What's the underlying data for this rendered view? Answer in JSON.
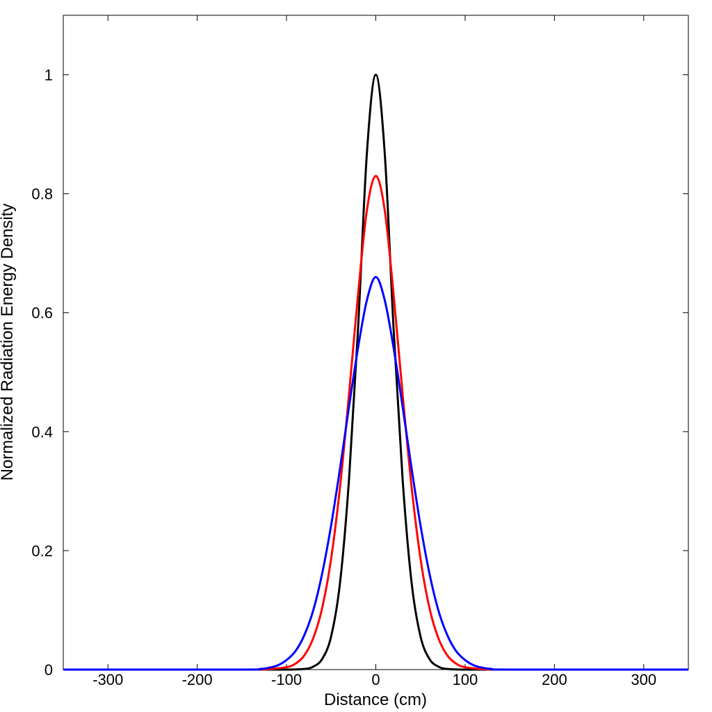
{
  "chart_data": {
    "type": "line",
    "title": "",
    "xlabel": "Distance (cm)",
    "ylabel": "Normalized Radiation Energy Density",
    "xlim": [
      -350,
      350
    ],
    "ylim": [
      0,
      1.1
    ],
    "xticks": [
      -300,
      -200,
      -100,
      0,
      100,
      200,
      300
    ],
    "xtick_labels": [
      "-300",
      "-200",
      "-100",
      "0",
      "100",
      "200",
      "300"
    ],
    "yticks": [
      0,
      0.2,
      0.4,
      0.6,
      0.8,
      1
    ],
    "ytick_labels": [
      "0",
      "0.2",
      "0.4",
      "0.6",
      "0.8",
      "1"
    ],
    "grid": false,
    "legend": "none",
    "series": [
      {
        "color": "#000000",
        "x": [
          -350,
          -150,
          -100,
          -80,
          -70,
          -60,
          -50,
          -40,
          -30,
          -20,
          -10,
          0,
          10,
          20,
          30,
          40,
          50,
          60,
          70,
          80,
          100,
          150,
          350
        ],
        "values": [
          0,
          0,
          0,
          0.001,
          0.005,
          0.018,
          0.056,
          0.147,
          0.32,
          0.57,
          0.868,
          1.0,
          0.868,
          0.57,
          0.32,
          0.147,
          0.056,
          0.018,
          0.005,
          0.001,
          0,
          0,
          0
        ]
      },
      {
        "color": "#ff0000",
        "x": [
          -350,
          -150,
          -120,
          -100,
          -90,
          -80,
          -70,
          -60,
          -50,
          -40,
          -30,
          -20,
          -10,
          0,
          10,
          20,
          30,
          40,
          50,
          60,
          70,
          80,
          90,
          100,
          120,
          150,
          350
        ],
        "values": [
          0,
          0,
          0.001,
          0.004,
          0.01,
          0.024,
          0.053,
          0.104,
          0.187,
          0.308,
          0.463,
          0.629,
          0.772,
          0.83,
          0.772,
          0.629,
          0.463,
          0.308,
          0.187,
          0.104,
          0.053,
          0.024,
          0.01,
          0.004,
          0.001,
          0,
          0
        ]
      },
      {
        "color": "#0000ff",
        "x": [
          -350,
          -150,
          -130,
          -120,
          -110,
          -100,
          -90,
          -80,
          -70,
          -60,
          -50,
          -40,
          -30,
          -20,
          -10,
          0,
          10,
          20,
          30,
          40,
          50,
          60,
          70,
          80,
          90,
          100,
          110,
          120,
          130,
          150,
          350
        ],
        "values": [
          0,
          0,
          0.001,
          0.003,
          0.007,
          0.016,
          0.031,
          0.058,
          0.1,
          0.162,
          0.243,
          0.339,
          0.442,
          0.54,
          0.621,
          0.66,
          0.621,
          0.54,
          0.442,
          0.339,
          0.243,
          0.162,
          0.1,
          0.058,
          0.031,
          0.016,
          0.007,
          0.003,
          0.001,
          0,
          0
        ]
      }
    ]
  }
}
